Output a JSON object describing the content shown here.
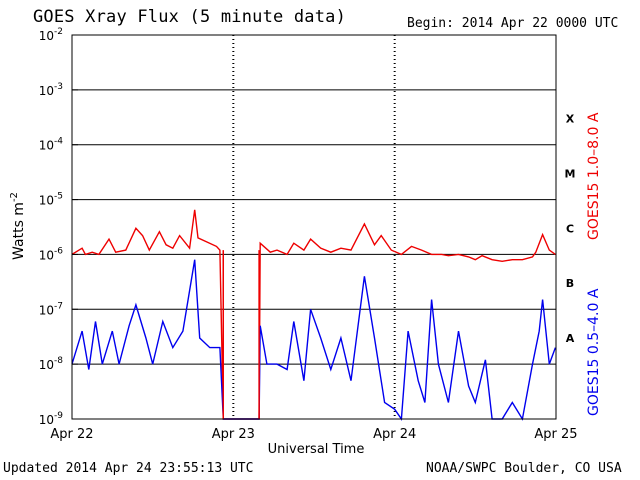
{
  "header": {
    "title": "GOES Xray Flux (5 minute data)",
    "begin": "Begin:  2014 Apr 22 0000 UTC"
  },
  "footer": {
    "updated": "Updated 2014 Apr 24 23:55:13 UTC",
    "credit": "NOAA/SWPC Boulder, CO USA"
  },
  "chart_data": {
    "type": "line",
    "title": "GOES Xray Flux (5 minute data)",
    "xlabel": "Universal Time",
    "ylabel": "Watts m⁻²",
    "y_scale": "log",
    "ylim": [
      1e-09,
      0.01
    ],
    "xlim": [
      "2014-04-22 00:00",
      "2014-04-25 00:00"
    ],
    "x_ticks": [
      "Apr 22",
      "Apr 23",
      "Apr 24",
      "Apr 25"
    ],
    "y_ticks": [
      {
        "value": 1e-09,
        "base": "10",
        "exp": "-9"
      },
      {
        "value": 1e-08,
        "base": "10",
        "exp": "-8"
      },
      {
        "value": 1e-07,
        "base": "10",
        "exp": "-7"
      },
      {
        "value": 1e-06,
        "base": "10",
        "exp": "-6"
      },
      {
        "value": 1e-05,
        "base": "10",
        "exp": "-5"
      },
      {
        "value": 0.0001,
        "base": "10",
        "exp": "-4"
      },
      {
        "value": 0.001,
        "base": "10",
        "exp": "-3"
      },
      {
        "value": 0.01,
        "base": "10",
        "exp": "-2"
      }
    ],
    "flare_classes": [
      {
        "label": "A",
        "value": 3e-08
      },
      {
        "label": "B",
        "value": 3e-07
      },
      {
        "label": "C",
        "value": 3e-06
      },
      {
        "label": "M",
        "value": 3e-05
      },
      {
        "label": "X",
        "value": 0.0003
      }
    ],
    "grid": true,
    "series": [
      {
        "name": "GOES15 1.0–8.0 A",
        "color": "#ee0000",
        "points": [
          [
            "2014-04-22 00:00",
            1e-06
          ],
          [
            "2014-04-22 01:30",
            1.3e-06
          ],
          [
            "2014-04-22 02:00",
            1e-06
          ],
          [
            "2014-04-22 03:00",
            1.1e-06
          ],
          [
            "2014-04-22 04:00",
            1e-06
          ],
          [
            "2014-04-22 05:30",
            1.9e-06
          ],
          [
            "2014-04-22 06:30",
            1.1e-06
          ],
          [
            "2014-04-22 08:00",
            1.2e-06
          ],
          [
            "2014-04-22 09:30",
            3e-06
          ],
          [
            "2014-04-22 10:30",
            2.2e-06
          ],
          [
            "2014-04-22 11:30",
            1.2e-06
          ],
          [
            "2014-04-22 13:00",
            2.6e-06
          ],
          [
            "2014-04-22 14:00",
            1.5e-06
          ],
          [
            "2014-04-22 15:00",
            1.3e-06
          ],
          [
            "2014-04-22 16:00",
            2.2e-06
          ],
          [
            "2014-04-22 17:30",
            1.3e-06
          ],
          [
            "2014-04-22 18:15",
            6.5e-06
          ],
          [
            "2014-04-22 18:45",
            2e-06
          ],
          [
            "2014-04-22 20:00",
            1.7e-06
          ],
          [
            "2014-04-22 21:30",
            1.4e-06
          ],
          [
            "2014-04-22 22:00",
            1.2e-06
          ],
          [
            "2014-04-22 22:30",
            1e-09
          ],
          [
            "2014-04-22 23:30",
            1e-09
          ],
          [
            "2014-04-23 00:00",
            1e-09
          ],
          [
            "2014-04-23 01:00",
            1e-09
          ],
          [
            "2014-04-23 01:30",
            1e-09
          ],
          [
            "2014-04-23 02:00",
            1e-09
          ],
          [
            "2014-04-23 03:00",
            1e-09
          ],
          [
            "2014-04-23 03:50",
            1e-09
          ],
          [
            "2014-04-23 04:00",
            1.6e-06
          ],
          [
            "2014-04-23 05:30",
            1.1e-06
          ],
          [
            "2014-04-23 06:30",
            1.2e-06
          ],
          [
            "2014-04-23 08:00",
            1e-06
          ],
          [
            "2014-04-23 09:00",
            1.6e-06
          ],
          [
            "2014-04-23 10:30",
            1.2e-06
          ],
          [
            "2014-04-23 11:30",
            1.9e-06
          ],
          [
            "2014-04-23 13:00",
            1.3e-06
          ],
          [
            "2014-04-23 14:30",
            1.1e-06
          ],
          [
            "2014-04-23 16:00",
            1.3e-06
          ],
          [
            "2014-04-23 17:30",
            1.2e-06
          ],
          [
            "2014-04-23 19:30",
            3.6e-06
          ],
          [
            "2014-04-23 21:00",
            1.5e-06
          ],
          [
            "2014-04-23 22:00",
            2.2e-06
          ],
          [
            "2014-04-23 23:30",
            1.2e-06
          ],
          [
            "2014-04-24 01:00",
            1e-06
          ],
          [
            "2014-04-24 02:30",
            1.4e-06
          ],
          [
            "2014-04-24 04:00",
            1.2e-06
          ],
          [
            "2014-04-24 05:30",
            1e-06
          ],
          [
            "2014-04-24 07:00",
            1e-06
          ],
          [
            "2014-04-24 08:00",
            9.5e-07
          ],
          [
            "2014-04-24 09:30",
            1e-06
          ],
          [
            "2014-04-24 11:00",
            9e-07
          ],
          [
            "2014-04-24 12:00",
            8e-07
          ],
          [
            "2014-04-24 13:00",
            9.5e-07
          ],
          [
            "2014-04-24 14:30",
            8e-07
          ],
          [
            "2014-04-24 16:00",
            7.5e-07
          ],
          [
            "2014-04-24 17:30",
            8e-07
          ],
          [
            "2014-04-24 19:00",
            8e-07
          ],
          [
            "2014-04-24 20:30",
            9e-07
          ],
          [
            "2014-04-24 21:00",
            1.1e-06
          ],
          [
            "2014-04-24 22:00",
            2.3e-06
          ],
          [
            "2014-04-24 23:00",
            1.2e-06
          ],
          [
            "2014-04-24 23:55",
            1e-06
          ]
        ]
      },
      {
        "name": "GOES15 0.5–4.0 A",
        "color": "#0000ee",
        "points": [
          [
            "2014-04-22 00:00",
            1e-08
          ],
          [
            "2014-04-22 01:30",
            4e-08
          ],
          [
            "2014-04-22 02:30",
            8e-09
          ],
          [
            "2014-04-22 03:30",
            6e-08
          ],
          [
            "2014-04-22 04:30",
            1e-08
          ],
          [
            "2014-04-22 06:00",
            4e-08
          ],
          [
            "2014-04-22 07:00",
            1e-08
          ],
          [
            "2014-04-22 08:30",
            5e-08
          ],
          [
            "2014-04-22 09:30",
            1.2e-07
          ],
          [
            "2014-04-22 11:00",
            3e-08
          ],
          [
            "2014-04-22 12:00",
            1e-08
          ],
          [
            "2014-04-22 13:30",
            6e-08
          ],
          [
            "2014-04-22 15:00",
            2e-08
          ],
          [
            "2014-04-22 16:30",
            4e-08
          ],
          [
            "2014-04-22 18:15",
            8e-07
          ],
          [
            "2014-04-22 19:00",
            3e-08
          ],
          [
            "2014-04-22 20:30",
            2e-08
          ],
          [
            "2014-04-22 22:00",
            2e-08
          ],
          [
            "2014-04-22 22:30",
            1e-09
          ],
          [
            "2014-04-22 23:30",
            1e-09
          ],
          [
            "2014-04-23 00:00",
            1e-09
          ],
          [
            "2014-04-23 01:00",
            1e-09
          ],
          [
            "2014-04-23 01:30",
            1e-09
          ],
          [
            "2014-04-23 02:00",
            1e-09
          ],
          [
            "2014-04-23 03:00",
            1e-09
          ],
          [
            "2014-04-23 03:50",
            1e-09
          ],
          [
            "2014-04-23 04:00",
            5e-08
          ],
          [
            "2014-04-23 05:00",
            1e-08
          ],
          [
            "2014-04-23 06:30",
            1e-08
          ],
          [
            "2014-04-23 08:00",
            8e-09
          ],
          [
            "2014-04-23 09:00",
            6e-08
          ],
          [
            "2014-04-23 10:30",
            5e-09
          ],
          [
            "2014-04-23 11:30",
            1e-07
          ],
          [
            "2014-04-23 13:00",
            3e-08
          ],
          [
            "2014-04-23 14:30",
            8e-09
          ],
          [
            "2014-04-23 16:00",
            3e-08
          ],
          [
            "2014-04-23 17:30",
            5e-09
          ],
          [
            "2014-04-23 19:30",
            4e-07
          ],
          [
            "2014-04-23 21:00",
            3e-08
          ],
          [
            "2014-04-23 22:30",
            2e-09
          ],
          [
            "2014-04-24 00:00",
            1.5e-09
          ],
          [
            "2014-04-24 01:00",
            1e-09
          ],
          [
            "2014-04-24 02:00",
            4e-08
          ],
          [
            "2014-04-24 03:30",
            5e-09
          ],
          [
            "2014-04-24 04:30",
            2e-09
          ],
          [
            "2014-04-24 05:30",
            1.5e-07
          ],
          [
            "2014-04-24 06:30",
            1e-08
          ],
          [
            "2014-04-24 08:00",
            2e-09
          ],
          [
            "2014-04-24 09:30",
            4e-08
          ],
          [
            "2014-04-24 11:00",
            4e-09
          ],
          [
            "2014-04-24 12:00",
            2e-09
          ],
          [
            "2014-04-24 13:30",
            1.2e-08
          ],
          [
            "2014-04-24 14:30",
            1e-09
          ],
          [
            "2014-04-24 16:00",
            1e-09
          ],
          [
            "2014-04-24 17:30",
            2e-09
          ],
          [
            "2014-04-24 19:00",
            1e-09
          ],
          [
            "2014-04-24 20:30",
            1e-08
          ],
          [
            "2014-04-24 21:30",
            4e-08
          ],
          [
            "2014-04-24 22:00",
            1.5e-07
          ],
          [
            "2014-04-24 23:00",
            1e-08
          ],
          [
            "2014-04-24 23:55",
            2e-08
          ]
        ]
      }
    ],
    "data_gap": {
      "from": "2014-04-22 22:30",
      "to": "2014-04-23 03:50",
      "color": "#ee0000"
    }
  }
}
